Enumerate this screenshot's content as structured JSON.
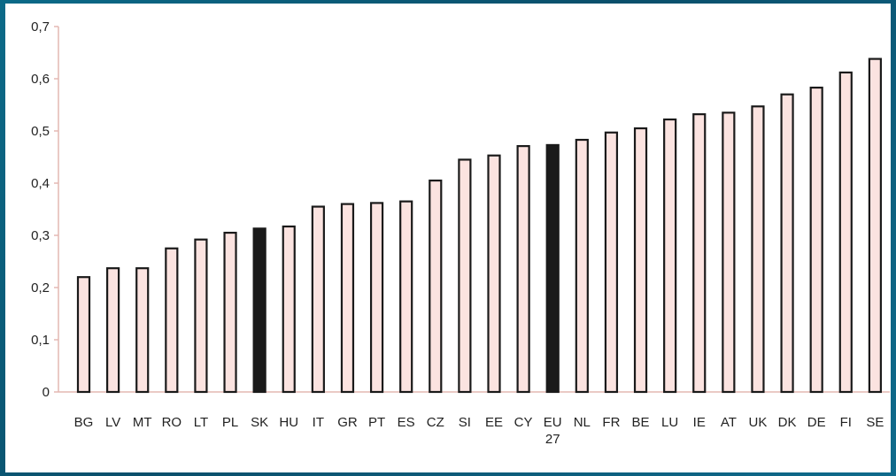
{
  "chart_data": {
    "type": "bar",
    "categories": [
      "BG",
      "LV",
      "MT",
      "RO",
      "LT",
      "PL",
      "SK",
      "HU",
      "IT",
      "GR",
      "PT",
      "ES",
      "CZ",
      "SI",
      "EE",
      "CY",
      "EU\n27",
      "NL",
      "FR",
      "BE",
      "LU",
      "IE",
      "AT",
      "UK",
      "DK",
      "DE",
      "FI",
      "SE"
    ],
    "values": [
      0.22,
      0.237,
      0.237,
      0.275,
      0.292,
      0.305,
      0.313,
      0.317,
      0.355,
      0.36,
      0.362,
      0.365,
      0.405,
      0.445,
      0.453,
      0.471,
      0.473,
      0.483,
      0.497,
      0.505,
      0.522,
      0.532,
      0.535,
      0.547,
      0.57,
      0.583,
      0.612,
      0.638
    ],
    "highlighted": [
      "SK",
      "EU\n27"
    ],
    "ylim": [
      0,
      0.7
    ],
    "yticks": [
      "0",
      "0,1",
      "0,2",
      "0,3",
      "0,4",
      "0,5",
      "0,6",
      "0,7"
    ],
    "grid": false,
    "colors": {
      "bar_fill": "#fbe3e0",
      "bar_stroke": "#1a1a1a",
      "highlight_fill": "#1a1a1a",
      "axis": "#e4b8b2"
    }
  }
}
